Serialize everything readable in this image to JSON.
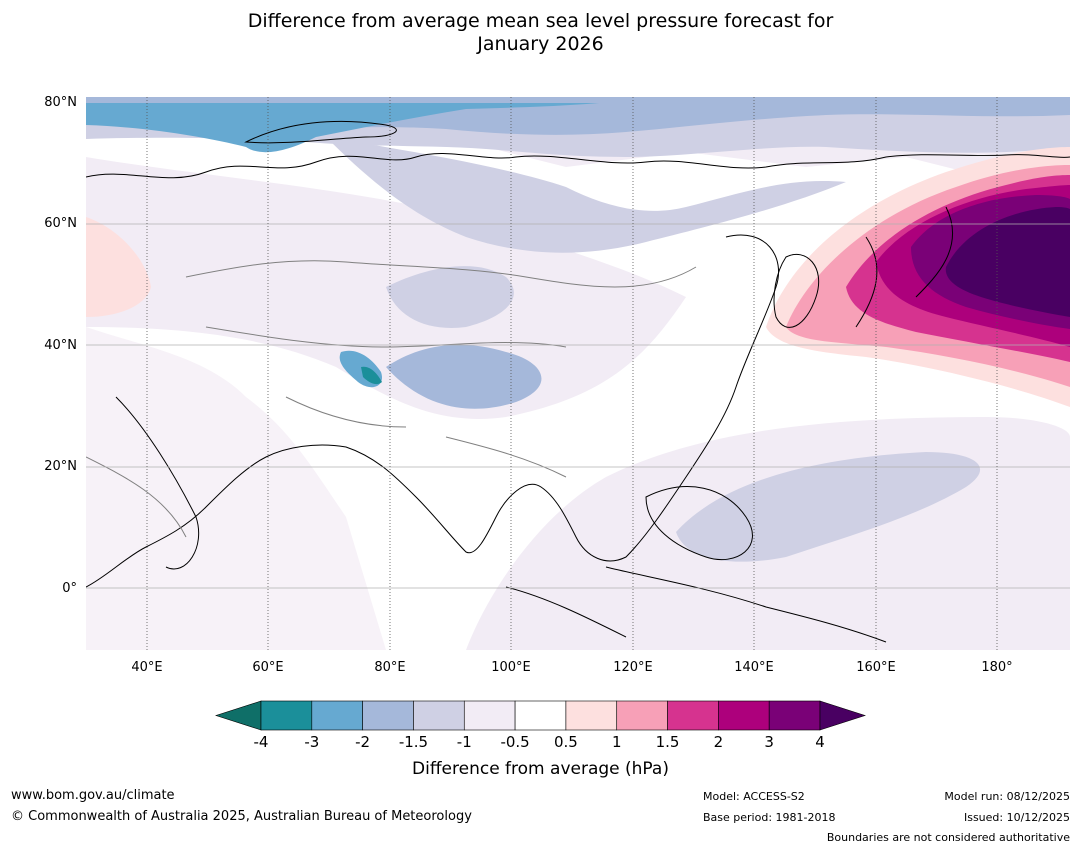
{
  "title_line1": "Difference from average mean sea level pressure forecast for",
  "title_line2": "January 2026",
  "map": {
    "lat_labels": [
      "80°N",
      "60°N",
      "40°N",
      "20°N",
      "0°"
    ],
    "lon_labels": [
      "40°E",
      "60°E",
      "80°E",
      "100°E",
      "120°E",
      "140°E",
      "160°E",
      "180°"
    ],
    "lon_range": [
      30,
      192
    ],
    "lat_range": [
      -10,
      81
    ]
  },
  "colorbar": {
    "label": "Difference from average (hPa)",
    "ticks": [
      "-4",
      "-3",
      "-2",
      "-1.5",
      "-1",
      "-0.5",
      "0.5",
      "1",
      "1.5",
      "2",
      "3",
      "4"
    ],
    "colors": [
      "#0f6f68",
      "#1b8f9a",
      "#66a9d1",
      "#a5b8da",
      "#cfd0e4",
      "#f2ecf5",
      "#ffffff",
      "#fde0df",
      "#f7a0b7",
      "#d6338f",
      "#ad007c",
      "#7a0177",
      "#490062"
    ]
  },
  "footer": {
    "website": "www.bom.gov.au/climate",
    "copyright": "© Commonwealth of Australia 2025, Australian Bureau of Meteorology",
    "model": "Model: ACCESS-S2",
    "base_period": "Base period: 1981-2018",
    "model_run": "Model run: 08/12/2025",
    "issued": "Issued: 10/12/2025",
    "disclaimer": "Boundaries are not considered authoritative"
  }
}
